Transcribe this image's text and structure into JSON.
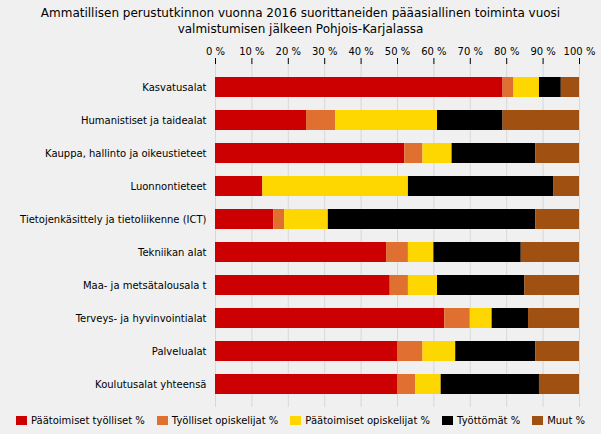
{
  "chart_data": {
    "type": "bar",
    "title": "Ammatillisen perustutkinnon vuonna 2016 suorittaneiden pääasiallinen toiminta vuosi\nvalmistumisen jälkeen Pohjois-Karjalassa",
    "orientation": "horizontal",
    "stacked": true,
    "categories": [
      "Kasvatusalat",
      "Humanistiset ja taidealat",
      "Kauppa, hallinto ja oikeustieteet",
      "Luonnontieteet",
      "Tietojenkäsittely ja tietoliikenne (ICT)",
      "Tekniikan alat",
      "Maa- ja metsätalousala t",
      "Terveys- ja hyvinvointialat",
      "Palvelualat",
      "Koulutusalat yhteensä"
    ],
    "series": [
      {
        "name": "Päätoimiset työlliset %",
        "color": "#CC0000",
        "values": [
          79,
          25,
          52,
          13,
          16,
          47,
          48,
          63,
          50,
          50
        ]
      },
      {
        "name": "Työlliset opiskelijat %",
        "color": "#E07030",
        "values": [
          3,
          8,
          5,
          0,
          3,
          6,
          5,
          7,
          7,
          5
        ]
      },
      {
        "name": "Päätoimiset opiskelijat %",
        "color": "#FFD700",
        "values": [
          7,
          28,
          8,
          40,
          12,
          7,
          8,
          6,
          9,
          7
        ]
      },
      {
        "name": "Työttömät %",
        "color": "#000000",
        "values": [
          6,
          18,
          23,
          40,
          57,
          24,
          24,
          10,
          22,
          27
        ]
      },
      {
        "name": "Muut %",
        "color": "#A05010",
        "values": [
          5,
          21,
          12,
          7,
          12,
          16,
          15,
          14,
          12,
          11
        ]
      }
    ],
    "xlim": [
      0,
      100
    ],
    "xticks": [
      {
        "value": 0,
        "label": "0 %"
      },
      {
        "value": 10,
        "label": "10 %"
      },
      {
        "value": 20,
        "label": "20 %"
      },
      {
        "value": 30,
        "label": "30 %"
      },
      {
        "value": 40,
        "label": "40 %"
      },
      {
        "value": 50,
        "label": "50 %"
      },
      {
        "value": 60,
        "label": "60 %"
      },
      {
        "value": 70,
        "label": "70 %"
      },
      {
        "value": 80,
        "label": "80 %"
      },
      {
        "value": 90,
        "label": "90 %"
      },
      {
        "value": 100,
        "label": "100 %"
      }
    ],
    "grid": true,
    "legend": "bottom"
  }
}
